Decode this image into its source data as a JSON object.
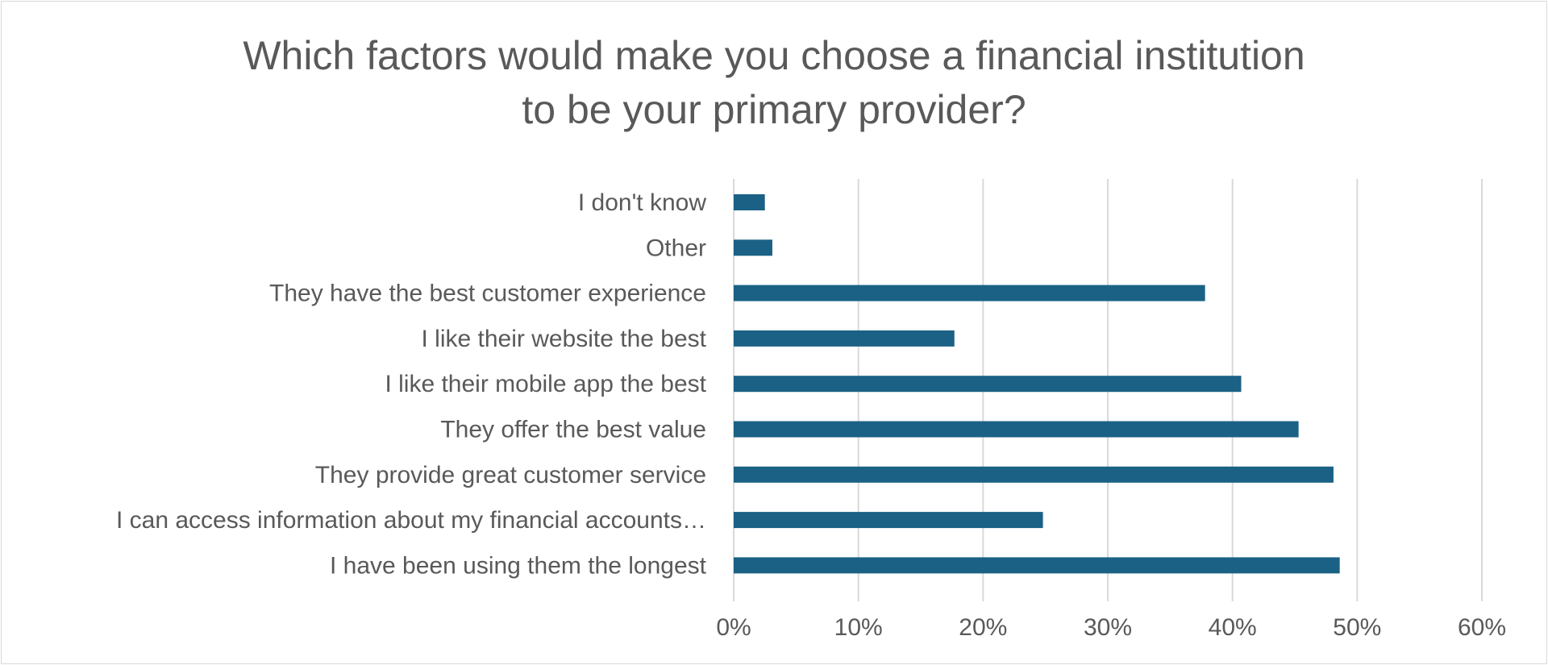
{
  "chart_data": {
    "type": "bar",
    "orientation": "horizontal",
    "title_lines": [
      "Which factors would make you choose a financial institution",
      "to be your primary provider?"
    ],
    "categories": [
      "I don't know",
      "Other",
      "They have the best customer experience",
      "I like their website the best",
      "I like their mobile app the best",
      "They offer the best value",
      "They provide great customer service",
      "I can access information about my financial accounts…",
      "I have been using them the longest"
    ],
    "values": [
      0.025,
      0.031,
      0.378,
      0.177,
      0.407,
      0.453,
      0.481,
      0.248,
      0.486
    ],
    "xlim": [
      0,
      0.6
    ],
    "x_ticks": [
      0,
      0.1,
      0.2,
      0.3,
      0.4,
      0.5,
      0.6
    ],
    "x_tick_labels": [
      "0%",
      "10%",
      "20%",
      "30%",
      "40%",
      "50%",
      "60%"
    ],
    "grid": "vertical",
    "legend": "none",
    "bar_color": "#1b6185",
    "grid_color": "#d9d9d9",
    "text_color": "#595959"
  }
}
